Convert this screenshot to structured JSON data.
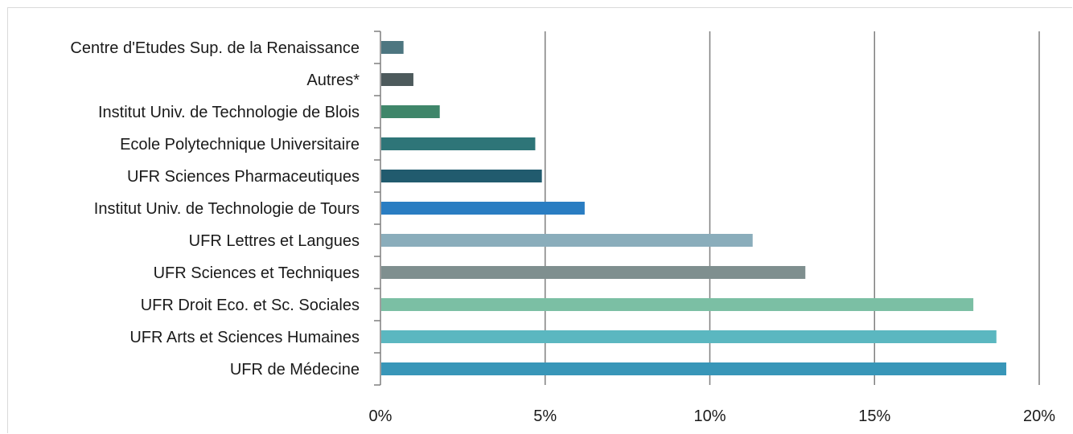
{
  "chart_data": {
    "type": "bar",
    "orientation": "horizontal",
    "title": "",
    "xlabel": "",
    "ylabel": "",
    "categories": [
      "Centre d'Etudes Sup. de la Renaissance",
      "Autres*",
      "Institut Univ. de Technologie de Blois",
      "Ecole Polytechnique Universitaire",
      "UFR Sciences Pharmaceutiques",
      "Institut Univ. de Technologie de Tours",
      "UFR Lettres et Langues",
      "UFR Sciences et Techniques",
      "UFR Droit Eco. et Sc. Sociales",
      "UFR Arts et Sciences Humaines",
      "UFR de Médecine"
    ],
    "values": [
      0.7,
      1.0,
      1.8,
      4.7,
      4.9,
      6.2,
      11.3,
      12.9,
      18.0,
      18.7,
      19.0
    ],
    "colors": [
      "#4d7680",
      "#4d5a5c",
      "#3f866a",
      "#2e7578",
      "#215b6e",
      "#2a7dc2",
      "#8aadbb",
      "#7f8f8f",
      "#7bbfa4",
      "#5bb7c0",
      "#3896b8"
    ],
    "xlim": [
      0,
      20
    ],
    "ticks": [
      0,
      5,
      10,
      15,
      20
    ],
    "tick_labels": [
      "0%",
      "5%",
      "10%",
      "15%",
      "20%"
    ],
    "grid": true,
    "legend": "none"
  }
}
